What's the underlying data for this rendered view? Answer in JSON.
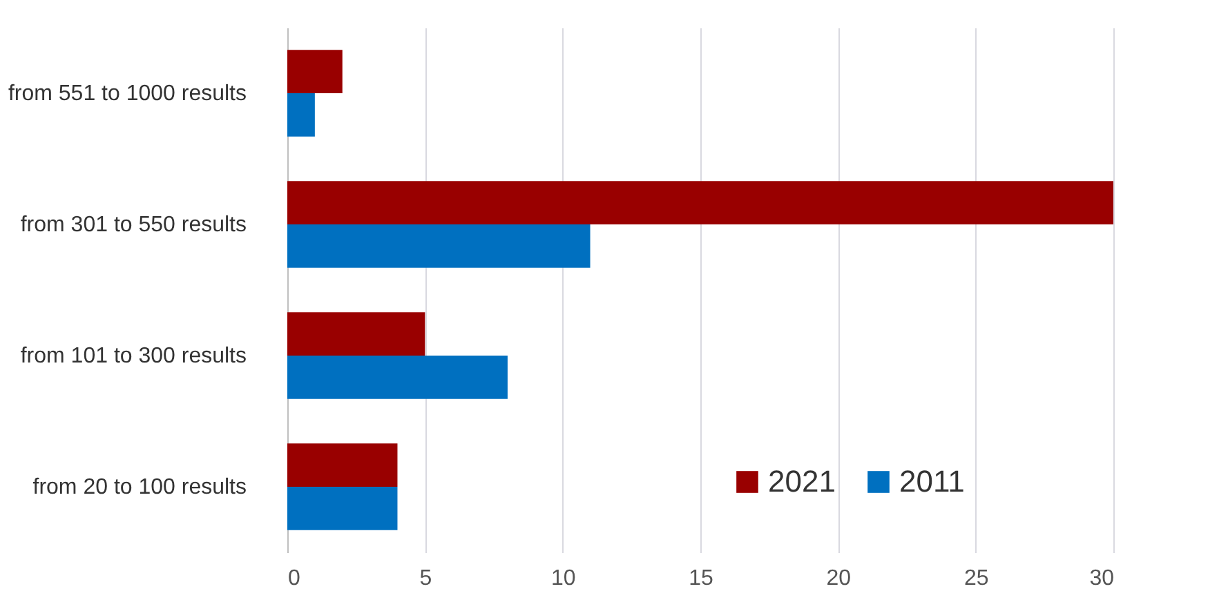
{
  "chart_data": {
    "type": "bar",
    "orientation": "horizontal",
    "categories": [
      "from 551 to 1000 results",
      "from 301 to 550 results",
      "from 101 to 300 results",
      "from 20 to 100 results"
    ],
    "series": [
      {
        "name": "2021",
        "color": "#990000",
        "values": [
          2,
          30,
          5,
          4
        ]
      },
      {
        "name": "2011",
        "color": "#0070c0",
        "values": [
          1,
          11,
          8,
          4
        ]
      }
    ],
    "xlim": [
      0,
      30
    ],
    "xticks": [
      0,
      5,
      10,
      15,
      20,
      25,
      30
    ],
    "grid": "x",
    "legend": "bottom right"
  }
}
